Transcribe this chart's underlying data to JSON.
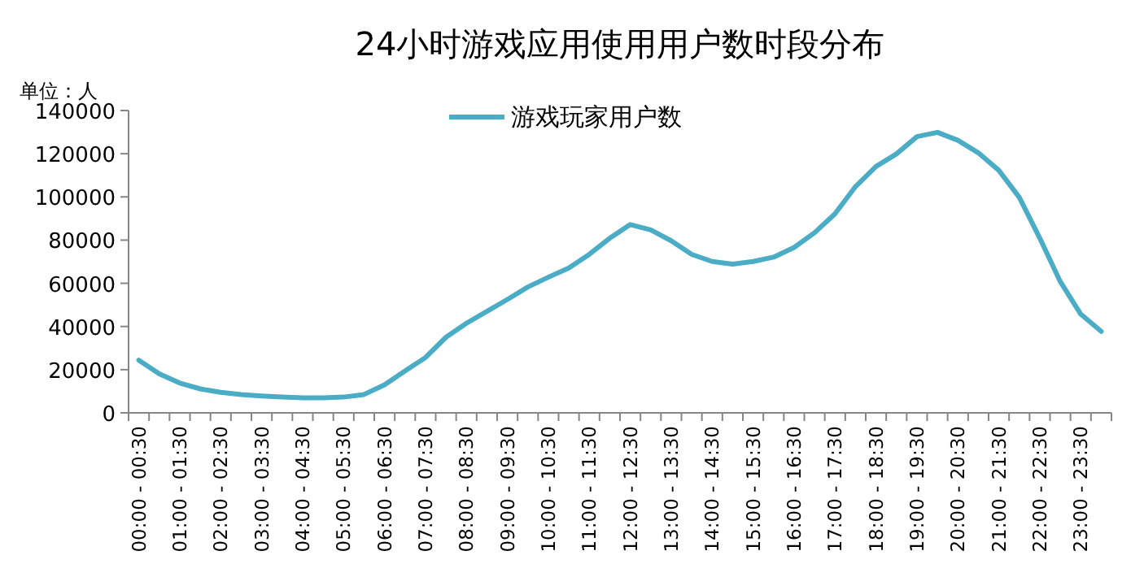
{
  "chart_data": {
    "type": "line",
    "title": "24小时游戏应用使用用户数时段分布",
    "ylabel": "单位：人",
    "categories": [
      "00:00 - 00:30",
      null,
      "01:00 - 01:30",
      null,
      "02:00 - 02:30",
      null,
      "03:00 - 03:30",
      null,
      "04:00 - 04:30",
      null,
      "05:00 - 05:30",
      null,
      "06:00 - 06:30",
      null,
      "07:00 - 07:30",
      null,
      "08:00 - 08:30",
      null,
      "09:00 - 09:30",
      null,
      "10:00 - 10:30",
      null,
      "11:00 - 11:30",
      null,
      "12:00 - 12:30",
      null,
      "13:00 - 13:30",
      null,
      "14:00 - 14:30",
      null,
      "15:00 - 15:30",
      null,
      "16:00 - 16:30",
      null,
      "17:00 - 17:30",
      null,
      "18:00 - 18:30",
      null,
      "19:00 - 19:30",
      null,
      "20:00 - 20:30",
      null,
      "21:00 - 21:30",
      null,
      "22:00 - 22:30",
      null,
      "23:00 - 23:30",
      null
    ],
    "series": [
      {
        "name": "游戏玩家用户数",
        "color": "#4bacc6",
        "values": [
          24400,
          18100,
          13800,
          11100,
          9500,
          8500,
          7800,
          7300,
          7000,
          7000,
          7300,
          8500,
          13000,
          19400,
          25600,
          35000,
          41500,
          47000,
          52500,
          58300,
          62800,
          67100,
          73400,
          80900,
          87200,
          84700,
          79700,
          73400,
          70100,
          68900,
          70100,
          72100,
          76600,
          83400,
          92200,
          104800,
          114100,
          119900,
          127900,
          129900,
          126200,
          120400,
          112300,
          99800,
          80900,
          60800,
          45700,
          37700
        ]
      }
    ],
    "ylim": [
      0,
      140000
    ],
    "yticks": [
      0,
      20000,
      40000,
      60000,
      80000,
      100000,
      120000,
      140000
    ],
    "legend": "top"
  }
}
